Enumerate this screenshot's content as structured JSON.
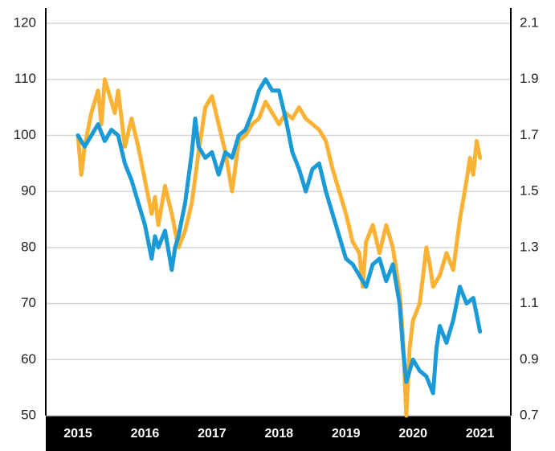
{
  "chart_data": {
    "type": "line",
    "xlim": [
      2014.52,
      2021.46
    ],
    "xticks": [
      2015,
      2016,
      2017,
      2018,
      2019,
      2020,
      2021
    ],
    "ylim": [
      50,
      120
    ],
    "yticks": [
      50,
      60,
      70,
      80,
      90,
      100,
      110,
      120
    ],
    "y2lim": [
      0.7,
      2.1
    ],
    "y2ticks": [
      0.7,
      0.9,
      1.1,
      1.3,
      1.5,
      1.7,
      1.9,
      2.1
    ],
    "grid": true,
    "series": [
      {
        "color": "#f9b233",
        "x": [
          2015.0,
          2015.05,
          2015.1,
          2015.2,
          2015.3,
          2015.35,
          2015.4,
          2015.5,
          2015.55,
          2015.6,
          2015.7,
          2015.8,
          2015.9,
          2016.0,
          2016.1,
          2016.15,
          2016.2,
          2016.3,
          2016.4,
          2016.5,
          2016.6,
          2016.7,
          2016.8,
          2016.9,
          2017.0,
          2017.1,
          2017.2,
          2017.3,
          2017.4,
          2017.5,
          2017.6,
          2017.7,
          2017.8,
          2017.9,
          2018.0,
          2018.1,
          2018.2,
          2018.3,
          2018.4,
          2018.5,
          2018.6,
          2018.7,
          2018.8,
          2018.9,
          2019.0,
          2019.1,
          2019.2,
          2019.25,
          2019.3,
          2019.4,
          2019.5,
          2019.6,
          2019.7,
          2019.8,
          2019.85,
          2019.9,
          2019.95,
          2020.0,
          2020.1,
          2020.2,
          2020.25,
          2020.3,
          2020.4,
          2020.5,
          2020.6,
          2020.7,
          2020.8,
          2020.85,
          2020.9,
          2020.95,
          2021.0
        ],
        "values": [
          100,
          93,
          98,
          104,
          108,
          102,
          110,
          106,
          104,
          108,
          98,
          103,
          98,
          92,
          86,
          89,
          84,
          91,
          86,
          80,
          83,
          88,
          97,
          105,
          107,
          102,
          97,
          90,
          99,
          100,
          102,
          103,
          106,
          104,
          102,
          104,
          103,
          105,
          103,
          102,
          101,
          99,
          94,
          90,
          86,
          81,
          79,
          73,
          81,
          84,
          79,
          84,
          80,
          72,
          64,
          50,
          62,
          67,
          70,
          80,
          77,
          73,
          75,
          79,
          76,
          85,
          92,
          96,
          93,
          99,
          96
        ]
      },
      {
        "color": "#1a9ad6",
        "axis": "y2",
        "x": [
          2015.0,
          2015.1,
          2015.2,
          2015.3,
          2015.4,
          2015.5,
          2015.6,
          2015.7,
          2015.8,
          2015.9,
          2016.0,
          2016.1,
          2016.15,
          2016.2,
          2016.3,
          2016.4,
          2016.45,
          2016.5,
          2016.6,
          2016.7,
          2016.75,
          2016.8,
          2016.9,
          2017.0,
          2017.1,
          2017.2,
          2017.3,
          2017.4,
          2017.5,
          2017.6,
          2017.7,
          2017.8,
          2017.9,
          2018.0,
          2018.1,
          2018.2,
          2018.3,
          2018.4,
          2018.5,
          2018.6,
          2018.7,
          2018.8,
          2018.9,
          2019.0,
          2019.1,
          2019.2,
          2019.3,
          2019.4,
          2019.5,
          2019.6,
          2019.7,
          2019.8,
          2019.85,
          2019.9,
          2020.0,
          2020.1,
          2020.2,
          2020.3,
          2020.35,
          2020.4,
          2020.5,
          2020.6,
          2020.7,
          2020.8,
          2020.9,
          2021.0
        ],
        "values": [
          1.7,
          1.66,
          1.7,
          1.74,
          1.68,
          1.72,
          1.7,
          1.6,
          1.54,
          1.46,
          1.38,
          1.26,
          1.34,
          1.3,
          1.36,
          1.22,
          1.3,
          1.34,
          1.46,
          1.64,
          1.76,
          1.66,
          1.62,
          1.64,
          1.56,
          1.64,
          1.62,
          1.7,
          1.72,
          1.78,
          1.86,
          1.9,
          1.86,
          1.86,
          1.76,
          1.64,
          1.58,
          1.5,
          1.58,
          1.6,
          1.5,
          1.42,
          1.34,
          1.26,
          1.24,
          1.2,
          1.16,
          1.24,
          1.26,
          1.18,
          1.24,
          1.1,
          0.94,
          0.82,
          0.9,
          0.86,
          0.84,
          0.78,
          0.94,
          1.02,
          0.96,
          1.04,
          1.16,
          1.1,
          1.12,
          1.0
        ]
      }
    ]
  }
}
